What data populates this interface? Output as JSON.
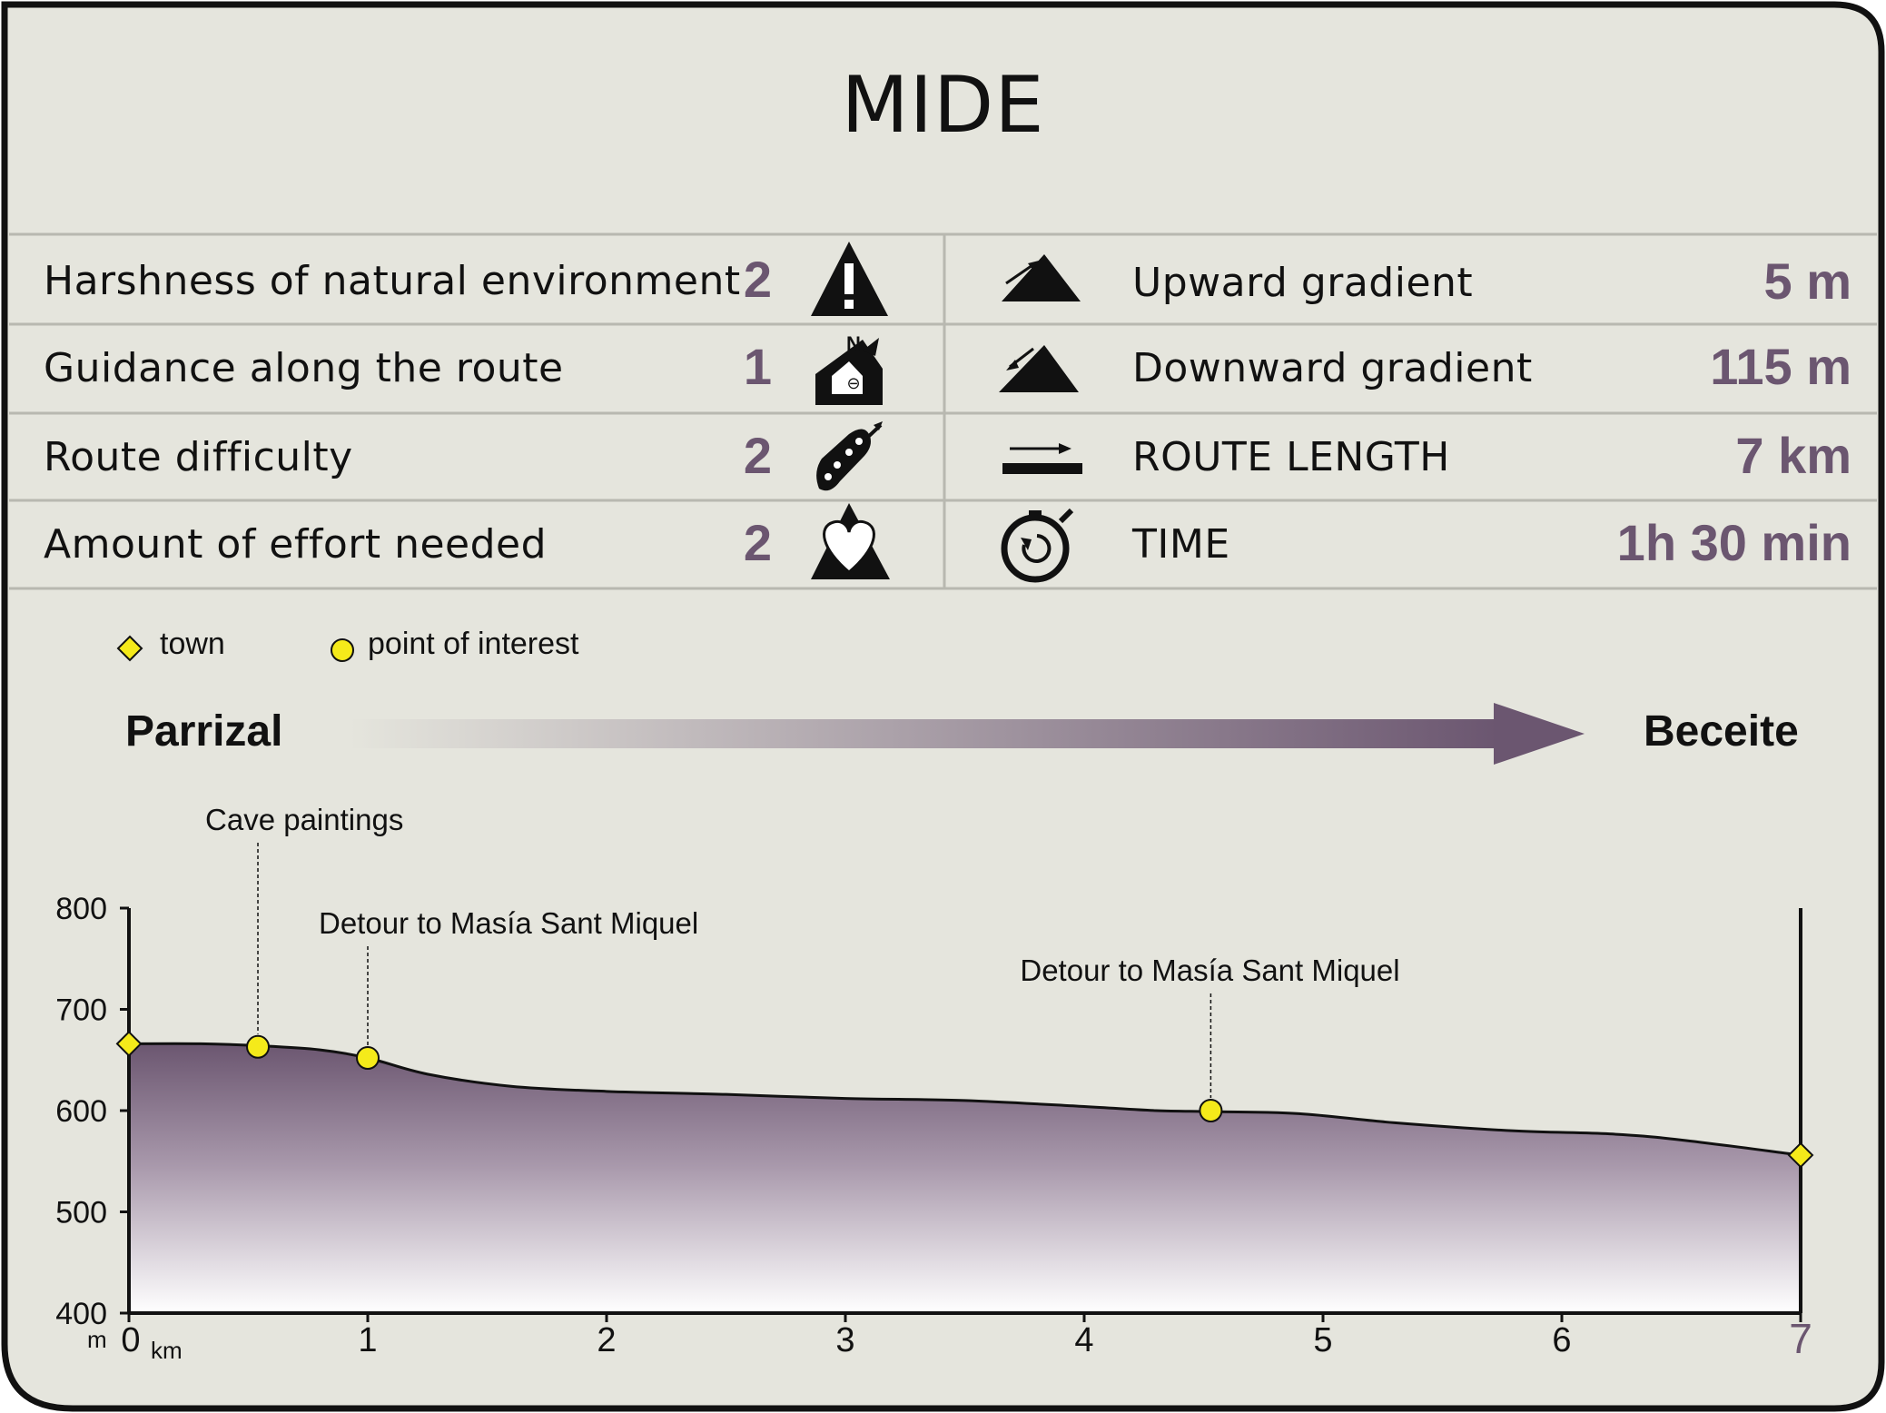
{
  "title": "MIDE",
  "mide_rows": [
    {
      "label": "Harshness of natural environment",
      "score": "2",
      "icon": "harshness-icon"
    },
    {
      "label": "Guidance along the route",
      "score": "1",
      "icon": "guidance-icon"
    },
    {
      "label": "Route difficulty",
      "score": "2",
      "icon": "difficulty-icon"
    },
    {
      "label": "Amount of effort needed",
      "score": "2",
      "icon": "effort-icon"
    }
  ],
  "stats": [
    {
      "label": "Upward gradient",
      "value": "5 m",
      "icon": "upward-gradient-icon"
    },
    {
      "label": "Downward gradient",
      "value": "115 m",
      "icon": "downward-gradient-icon"
    },
    {
      "label": "ROUTE LENGTH",
      "value": "7 km",
      "icon": "route-length-icon"
    },
    {
      "label": "TIME",
      "value": "1h 30 min",
      "icon": "stopwatch-icon"
    }
  ],
  "legend": {
    "town": "town",
    "poi": "point of interest"
  },
  "route": {
    "start": "Parrizal",
    "end": "Beceite"
  },
  "colors": {
    "background": "#e5e5dd",
    "accent": "#6b5670",
    "marker": "#f5ea1a",
    "border": "#111111"
  },
  "chart_data": {
    "type": "area",
    "xlabel": "km",
    "ylabel": "m",
    "xlim": [
      0,
      7
    ],
    "ylim": [
      400,
      800
    ],
    "x_ticks": [
      "0",
      "1",
      "2",
      "3",
      "4",
      "5",
      "6",
      "7"
    ],
    "y_ticks": [
      "400",
      "500",
      "600",
      "700",
      "800"
    ],
    "profile": [
      {
        "x": 0,
        "y": 666
      },
      {
        "x": 0.3,
        "y": 666
      },
      {
        "x": 0.55,
        "y": 664
      },
      {
        "x": 0.8,
        "y": 660
      },
      {
        "x": 1.0,
        "y": 652
      },
      {
        "x": 1.25,
        "y": 636
      },
      {
        "x": 1.6,
        "y": 624
      },
      {
        "x": 2.0,
        "y": 619
      },
      {
        "x": 2.5,
        "y": 616
      },
      {
        "x": 3.0,
        "y": 612
      },
      {
        "x": 3.5,
        "y": 610
      },
      {
        "x": 4.0,
        "y": 604
      },
      {
        "x": 4.3,
        "y": 600
      },
      {
        "x": 4.55,
        "y": 599
      },
      {
        "x": 4.9,
        "y": 597
      },
      {
        "x": 5.3,
        "y": 588
      },
      {
        "x": 5.8,
        "y": 580
      },
      {
        "x": 6.2,
        "y": 577
      },
      {
        "x": 6.5,
        "y": 571
      },
      {
        "x": 7.0,
        "y": 556
      }
    ],
    "markers": [
      {
        "type": "town",
        "x": 0,
        "y": 666
      },
      {
        "type": "poi",
        "x": 0.54,
        "y": 663,
        "label": "Cave paintings"
      },
      {
        "type": "poi",
        "x": 1.0,
        "y": 652,
        "label": "Detour to Masía Sant Miquel"
      },
      {
        "type": "poi",
        "x": 4.53,
        "y": 600,
        "label": "Detour to Masía Sant Miquel"
      },
      {
        "type": "town",
        "x": 7.0,
        "y": 556
      }
    ]
  }
}
